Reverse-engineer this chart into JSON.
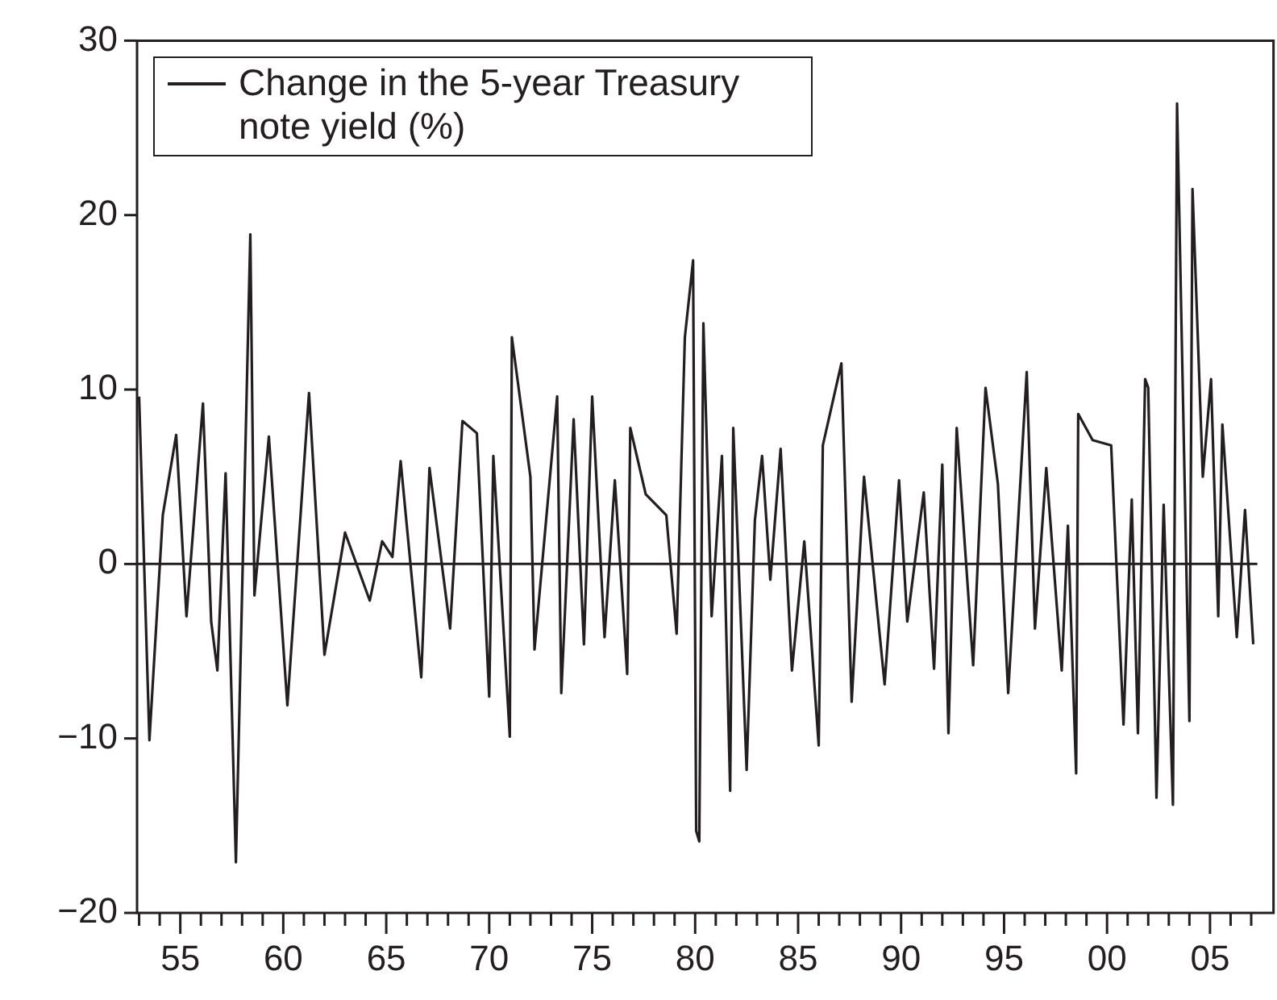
{
  "chart_data": {
    "type": "line",
    "x": [
      1953.0,
      1953.5,
      1954.15,
      1954.8,
      1955.3,
      1956.1,
      1956.5,
      1956.8,
      1957.2,
      1957.7,
      1958.4,
      1958.6,
      1959.3,
      1960.2,
      1961.25,
      1962.0,
      1963.0,
      1964.2,
      1964.8,
      1965.3,
      1965.7,
      1966.7,
      1967.1,
      1968.1,
      1968.7,
      1969.4,
      1970.0,
      1970.2,
      1971.0,
      1971.1,
      1972.0,
      1972.2,
      1973.3,
      1973.5,
      1974.1,
      1974.6,
      1975.0,
      1975.6,
      1976.1,
      1976.7,
      1976.85,
      1977.6,
      1978.6,
      1979.1,
      1979.5,
      1979.9,
      1980.05,
      1980.2,
      1980.4,
      1980.8,
      1981.3,
      1981.7,
      1981.85,
      1982.5,
      1982.9,
      1983.25,
      1983.65,
      1984.15,
      1984.7,
      1985.3,
      1986.0,
      1986.2,
      1987.1,
      1987.6,
      1988.2,
      1989.2,
      1989.9,
      1990.3,
      1991.1,
      1991.6,
      1992.0,
      1992.3,
      1992.7,
      1993.5,
      1994.1,
      1994.7,
      1995.2,
      1996.1,
      1996.5,
      1997.05,
      1997.8,
      1998.1,
      1998.5,
      1998.6,
      1999.3,
      2000.2,
      2000.8,
      2001.2,
      2001.5,
      2001.85,
      2002.0,
      2002.4,
      2002.75,
      2003.2,
      2003.4,
      2004.0,
      2004.15,
      2004.65,
      2005.05,
      2005.4,
      2005.6,
      2006.3,
      2006.7,
      2007.1
    ],
    "series": [
      {
        "name": "Change in the 5-year Treasury note yield (%)",
        "color": "#231f20",
        "values": [
          9.6,
          -10.1,
          2.8,
          7.4,
          -3.0,
          9.2,
          -3.3,
          -6.1,
          5.2,
          -17.1,
          18.9,
          -1.8,
          7.3,
          -8.1,
          9.8,
          -5.2,
          1.8,
          -2.1,
          1.3,
          0.4,
          5.9,
          -6.5,
          5.5,
          -3.7,
          8.2,
          7.5,
          -7.6,
          6.2,
          -9.9,
          13.0,
          5.0,
          -4.9,
          9.6,
          -7.4,
          8.3,
          -4.6,
          9.6,
          -4.2,
          4.8,
          -6.3,
          7.8,
          4.0,
          2.8,
          -4.0,
          13.0,
          17.4,
          -15.3,
          -15.9,
          13.8,
          -3.0,
          6.2,
          -13.0,
          7.8,
          -11.8,
          2.5,
          6.2,
          -0.9,
          6.6,
          -6.1,
          1.3,
          -10.4,
          6.8,
          11.5,
          -7.9,
          5.0,
          -6.9,
          4.8,
          -3.3,
          4.1,
          -6.0,
          5.7,
          -9.7,
          7.8,
          -5.8,
          10.1,
          4.6,
          -7.4,
          11.0,
          -3.7,
          5.5,
          -6.1,
          2.2,
          -12.0,
          8.6,
          7.1,
          6.8,
          -9.2,
          3.7,
          -9.7,
          10.6,
          10.1,
          -13.4,
          3.4,
          -13.8,
          26.4,
          -9.0,
          21.5,
          5.0,
          10.6,
          -3.0,
          8.0,
          -4.2,
          3.1,
          -4.6
        ]
      }
    ],
    "xlim": [
      1952.9,
      2007.3
    ],
    "xticks": [
      {
        "value": 1953,
        "label": null
      },
      {
        "value": 1954,
        "label": null
      },
      {
        "value": 1955,
        "label": "55"
      },
      {
        "value": 1956,
        "label": null
      },
      {
        "value": 1957,
        "label": null
      },
      {
        "value": 1958,
        "label": null
      },
      {
        "value": 1959,
        "label": null
      },
      {
        "value": 1960,
        "label": "60"
      },
      {
        "value": 1961,
        "label": null
      },
      {
        "value": 1962,
        "label": null
      },
      {
        "value": 1963,
        "label": null
      },
      {
        "value": 1964,
        "label": null
      },
      {
        "value": 1965,
        "label": "65"
      },
      {
        "value": 1966,
        "label": null
      },
      {
        "value": 1967,
        "label": null
      },
      {
        "value": 1968,
        "label": null
      },
      {
        "value": 1969,
        "label": null
      },
      {
        "value": 1970,
        "label": "70"
      },
      {
        "value": 1971,
        "label": null
      },
      {
        "value": 1972,
        "label": null
      },
      {
        "value": 1973,
        "label": null
      },
      {
        "value": 1974,
        "label": null
      },
      {
        "value": 1975,
        "label": "75"
      },
      {
        "value": 1976,
        "label": null
      },
      {
        "value": 1977,
        "label": null
      },
      {
        "value": 1978,
        "label": null
      },
      {
        "value": 1979,
        "label": null
      },
      {
        "value": 1980,
        "label": "80"
      },
      {
        "value": 1981,
        "label": null
      },
      {
        "value": 1982,
        "label": null
      },
      {
        "value": 1983,
        "label": null
      },
      {
        "value": 1984,
        "label": null
      },
      {
        "value": 1985,
        "label": "85"
      },
      {
        "value": 1986,
        "label": null
      },
      {
        "value": 1987,
        "label": null
      },
      {
        "value": 1988,
        "label": null
      },
      {
        "value": 1989,
        "label": null
      },
      {
        "value": 1990,
        "label": "90"
      },
      {
        "value": 1991,
        "label": null
      },
      {
        "value": 1992,
        "label": null
      },
      {
        "value": 1993,
        "label": null
      },
      {
        "value": 1994,
        "label": null
      },
      {
        "value": 1995,
        "label": "95"
      },
      {
        "value": 1996,
        "label": null
      },
      {
        "value": 1997,
        "label": null
      },
      {
        "value": 1998,
        "label": null
      },
      {
        "value": 1999,
        "label": null
      },
      {
        "value": 2000,
        "label": "00"
      },
      {
        "value": 2001,
        "label": null
      },
      {
        "value": 2002,
        "label": null
      },
      {
        "value": 2003,
        "label": null
      },
      {
        "value": 2004,
        "label": null
      },
      {
        "value": 2005,
        "label": "05"
      },
      {
        "value": 2006,
        "label": null
      },
      {
        "value": 2007,
        "label": null
      }
    ],
    "ylim": [
      -20,
      30
    ],
    "yticks": [
      {
        "value": -20,
        "label": "−20"
      },
      {
        "value": -10,
        "label": "−10"
      },
      0,
      10,
      20,
      30
    ],
    "ref_lines": [
      {
        "axis": "y",
        "value": 0,
        "color": "#231f20"
      }
    ],
    "legend": "top left",
    "marker": "none",
    "line_style": "solid"
  }
}
